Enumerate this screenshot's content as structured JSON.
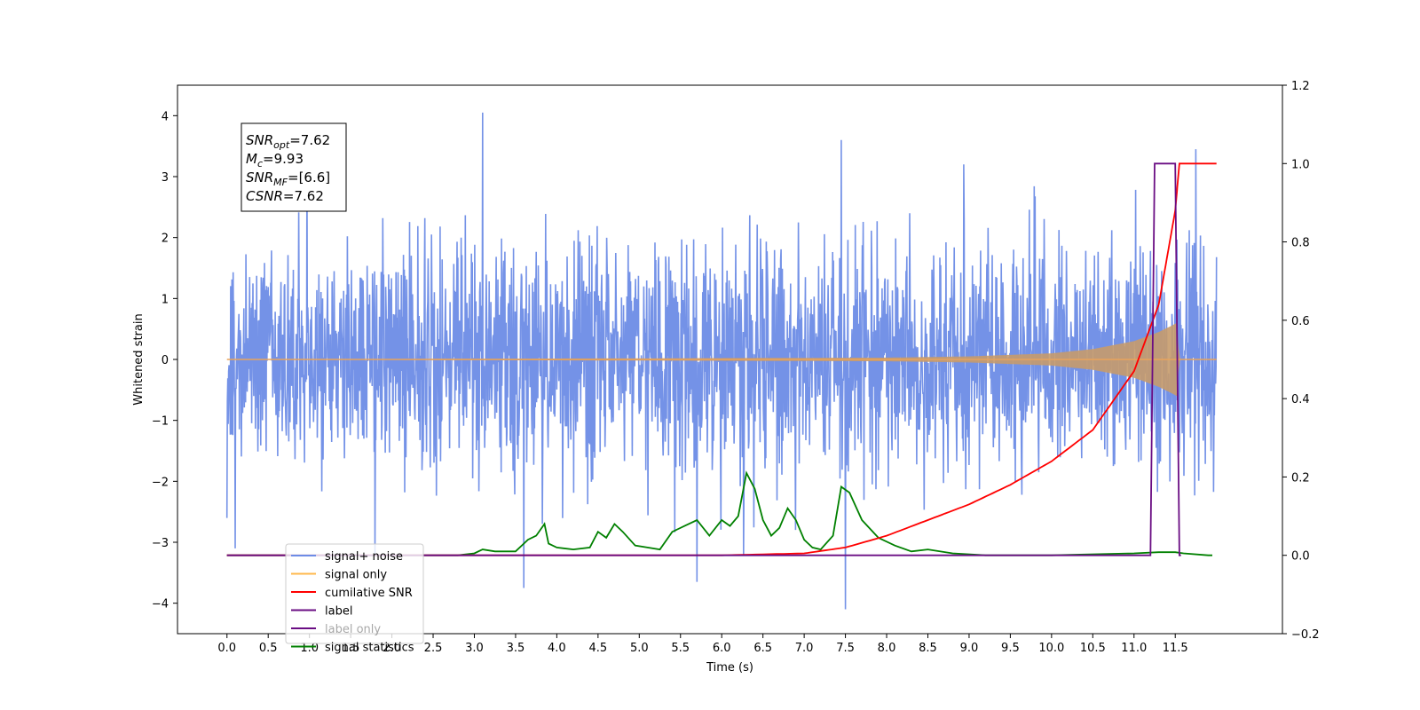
{
  "chart_data": {
    "type": "line",
    "xlabel": "Time (s)",
    "ylabel": "Whitened strain",
    "xlim": [
      -0.6,
      12.8
    ],
    "ylim": [
      -4.5,
      4.5
    ],
    "y2lim": [
      -0.2,
      1.2
    ],
    "x_ticks": [
      0.0,
      0.5,
      1.0,
      1.5,
      2.0,
      2.5,
      3.0,
      3.5,
      4.0,
      4.5,
      5.0,
      5.5,
      6.0,
      6.5,
      7.0,
      7.5,
      8.0,
      8.5,
      9.0,
      9.5,
      10.0,
      10.5,
      11.0,
      11.5
    ],
    "x_tick_labels": [
      "0.0",
      "0.5",
      "1.0",
      "1.5",
      "2.0",
      "2.5",
      "3.0",
      "3.5",
      "4.0",
      "4.5",
      "5.0",
      "5.5",
      "6.0",
      "6.5",
      "7.0",
      "7.5",
      "8.0",
      "8.5",
      "9.0",
      "9.5",
      "10.0",
      "10.5",
      "11.0",
      "11.5"
    ],
    "y_ticks": [
      4,
      3,
      2,
      1,
      0,
      -1,
      -2,
      -3,
      -4
    ],
    "y_tick_labels": [
      "4",
      "3",
      "2",
      "1",
      "0",
      "−1",
      "−2",
      "−3",
      "−4"
    ],
    "y2_ticks": [
      1.2,
      1.0,
      0.8,
      0.6,
      0.4,
      0.2,
      0.0,
      -0.2
    ],
    "y2_tick_labels": [
      "1.2",
      "1.0",
      "0.8",
      "0.6",
      "0.4",
      "0.2",
      "0.0",
      "−0.2"
    ],
    "grid": false,
    "legend_position": "lower-left",
    "series": [
      {
        "name": "signal+ noise",
        "axis": "left",
        "color": "#6d8ce6",
        "x_range": [
          0.0,
          12.0
        ],
        "noise_sigma": 0.75,
        "notable_peaks": [
          {
            "x": 3.1,
            "y": 4.05
          },
          {
            "x": 7.45,
            "y": 3.6
          },
          {
            "x": 11.75,
            "y": 3.45
          },
          {
            "x": 3.6,
            "y": -3.75
          },
          {
            "x": 5.7,
            "y": -3.65
          },
          {
            "x": 7.5,
            "y": -4.1
          },
          {
            "x": 0.1,
            "y": -3.1
          }
        ]
      },
      {
        "name": "signal only",
        "axis": "left",
        "color": "#e8a35c",
        "envelope": [
          [
            0.0,
            0.0
          ],
          [
            8.0,
            0.03
          ],
          [
            9.0,
            0.05
          ],
          [
            10.0,
            0.1
          ],
          [
            10.5,
            0.17
          ],
          [
            11.0,
            0.3
          ],
          [
            11.3,
            0.45
          ],
          [
            11.45,
            0.55
          ],
          [
            11.52,
            0.6
          ],
          [
            11.55,
            0.0
          ],
          [
            12.0,
            0.0
          ]
        ]
      },
      {
        "name": "cumilative SNR",
        "axis": "right",
        "color": "#ff0000",
        "x": [
          0.0,
          6.0,
          7.0,
          7.5,
          8.0,
          8.5,
          9.0,
          9.5,
          10.0,
          10.5,
          11.0,
          11.3,
          11.5,
          11.55,
          12.0
        ],
        "values": [
          0.0,
          0.0,
          0.005,
          0.02,
          0.05,
          0.09,
          0.13,
          0.18,
          0.24,
          0.32,
          0.47,
          0.64,
          0.88,
          1.0,
          1.0
        ]
      },
      {
        "name": "label",
        "axis": "right",
        "color": "#6a0d83",
        "x": [
          0.0,
          11.2,
          11.25,
          11.5,
          11.55,
          11.57
        ],
        "values": [
          0.0,
          0.0,
          1.0,
          1.0,
          0.0,
          0.0
        ]
      },
      {
        "name": "signal statistics",
        "axis": "right",
        "color": "#008000",
        "x": [
          0.0,
          2.8,
          3.0,
          3.1,
          3.25,
          3.5,
          3.65,
          3.75,
          3.85,
          3.9,
          4.0,
          4.2,
          4.4,
          4.5,
          4.6,
          4.7,
          4.8,
          4.95,
          5.1,
          5.25,
          5.4,
          5.55,
          5.7,
          5.85,
          6.0,
          6.1,
          6.2,
          6.3,
          6.4,
          6.5,
          6.6,
          6.7,
          6.8,
          6.9,
          7.0,
          7.1,
          7.2,
          7.35,
          7.45,
          7.55,
          7.7,
          7.9,
          8.1,
          8.3,
          8.5,
          8.8,
          9.2,
          10.0,
          11.0,
          11.3,
          11.5,
          11.6,
          11.9,
          11.95
        ],
        "values": [
          0.0,
          0.0,
          0.005,
          0.015,
          0.01,
          0.01,
          0.04,
          0.05,
          0.08,
          0.03,
          0.02,
          0.015,
          0.02,
          0.06,
          0.045,
          0.08,
          0.06,
          0.025,
          0.02,
          0.015,
          0.06,
          0.075,
          0.09,
          0.05,
          0.09,
          0.075,
          0.1,
          0.21,
          0.17,
          0.09,
          0.05,
          0.07,
          0.12,
          0.09,
          0.04,
          0.02,
          0.015,
          0.05,
          0.175,
          0.16,
          0.09,
          0.045,
          0.025,
          0.01,
          0.015,
          0.005,
          0.0,
          0.0,
          0.005,
          0.008,
          0.008,
          0.005,
          0.0,
          0.0
        ]
      },
      {
        "name": "label only",
        "axis": "right",
        "color": "#ffffff",
        "hidden": true
      }
    ],
    "annotation": {
      "lines": [
        {
          "base": "SNR",
          "sub": "opt",
          "value": "=7.62"
        },
        {
          "base": "M",
          "sub": "c",
          "value": "=9.93"
        },
        {
          "base": "SNR",
          "sub": "MF",
          "value": "=[6.6]"
        },
        {
          "base": "CSNR",
          "sub": "",
          "value": "=7.62"
        }
      ]
    },
    "legend_entries": [
      {
        "label": "signal+ noise",
        "color": "#6d8ce6"
      },
      {
        "label": "signal only",
        "color": "#ffb84d"
      },
      {
        "label": "cumilative SNR",
        "color": "#ff0000"
      },
      {
        "label": "label",
        "color": "#6a0d83"
      },
      {
        "label": "label only",
        "color": "#6a0d83",
        "hidden_text": true
      },
      {
        "label": "signal statistics",
        "color": "#008000"
      }
    ]
  }
}
